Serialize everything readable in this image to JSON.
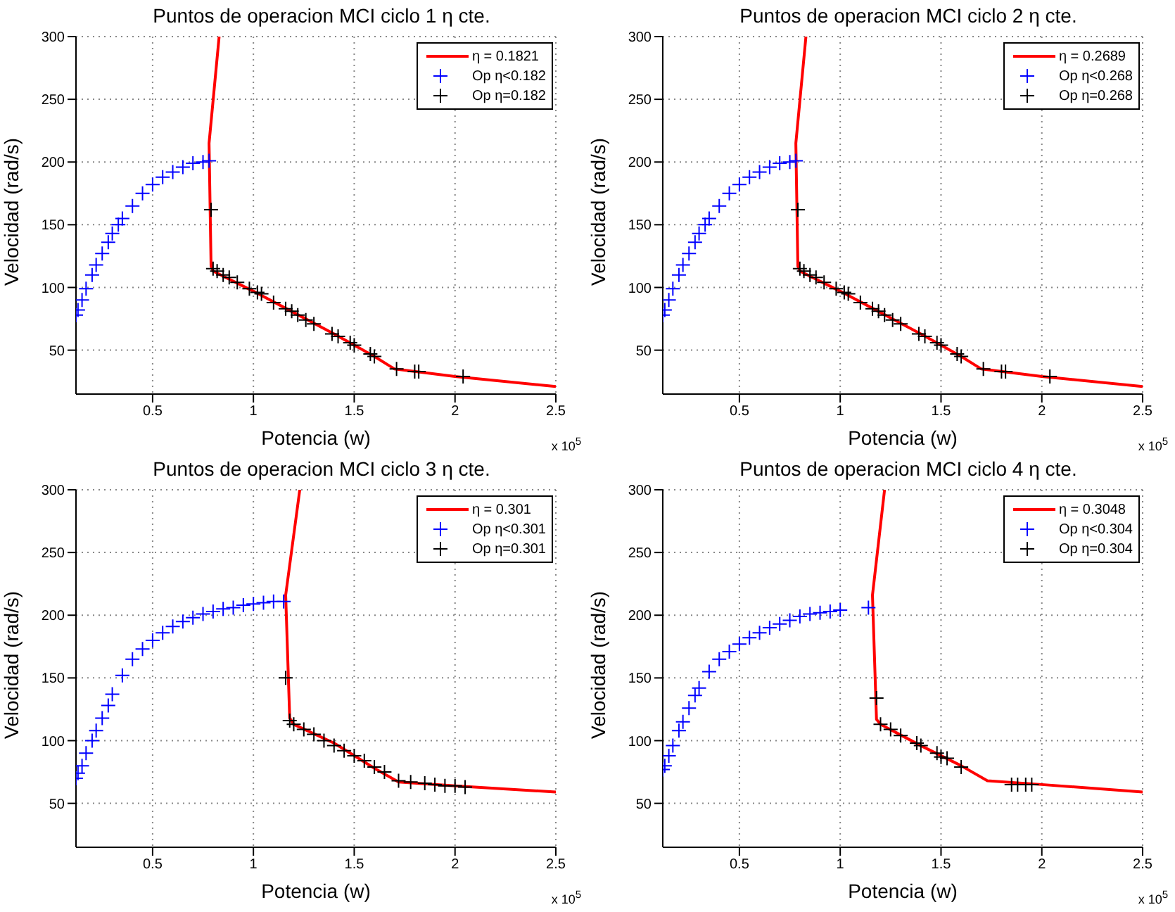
{
  "chart_data": [
    {
      "type": "scatter",
      "title": "Puntos de operacion MCI ciclo 1 η cte.",
      "xlabel": "Potencia (w)",
      "ylabel": "Velocidad (rad/s)",
      "annotations": [
        "x 10$^{5}$"
      ],
      "xlim": [
        0.12,
        2.5
      ],
      "ylim": [
        15,
        300
      ],
      "xticks": [
        0.5,
        1,
        1.5,
        2,
        2.5
      ],
      "yticks": [
        50,
        100,
        150,
        200,
        250,
        300
      ],
      "grid": true,
      "legend": "top right",
      "series": [
        {
          "name": "η = 0.1821",
          "type": "line",
          "color": "#ff0000",
          "marker": "none",
          "x": [
            0.83,
            0.78,
            0.79,
            0.8,
            1.0,
            1.2,
            1.4,
            1.6,
            1.7,
            2.0,
            2.5
          ],
          "values": [
            300,
            215,
            117,
            113,
            97,
            80,
            63,
            45,
            35,
            29,
            21
          ]
        },
        {
          "name": "Op η<0.182",
          "type": "scatter",
          "color": "#0000ff",
          "marker": "cross",
          "x": [
            0.12,
            0.13,
            0.15,
            0.17,
            0.2,
            0.22,
            0.25,
            0.28,
            0.3,
            0.33,
            0.35,
            0.4,
            0.45,
            0.5,
            0.55,
            0.6,
            0.65,
            0.7,
            0.75,
            0.78
          ],
          "values": [
            78,
            82,
            90,
            99,
            110,
            118,
            127,
            136,
            143,
            150,
            155,
            165,
            175,
            182,
            188,
            192,
            196,
            199,
            200,
            201
          ]
        },
        {
          "name": "Op η=0.182",
          "type": "scatter",
          "color": "#000000",
          "marker": "cross",
          "x": [
            0.79,
            0.8,
            0.82,
            0.85,
            0.88,
            0.92,
            0.98,
            1.02,
            1.04,
            1.1,
            1.16,
            1.19,
            1.22,
            1.26,
            1.3,
            1.39,
            1.42,
            1.48,
            1.5,
            1.58,
            1.6,
            1.71,
            1.8,
            1.82,
            2.04
          ],
          "values": [
            162,
            115,
            113,
            110,
            108,
            104,
            99,
            96,
            95,
            88,
            83,
            81,
            78,
            74,
            71,
            63,
            61,
            56,
            54,
            47,
            45,
            35,
            33,
            33,
            29
          ]
        }
      ]
    },
    {
      "type": "scatter",
      "title": "Puntos de operacion MCI ciclo 2 η cte.",
      "xlabel": "Potencia (w)",
      "ylabel": "Velocidad (rad/s)",
      "annotations": [
        "x 10$^{5}$"
      ],
      "xlim": [
        0.12,
        2.5
      ],
      "ylim": [
        15,
        300
      ],
      "xticks": [
        0.5,
        1,
        1.5,
        2,
        2.5
      ],
      "yticks": [
        50,
        100,
        150,
        200,
        250,
        300
      ],
      "grid": true,
      "legend": "top right",
      "series": [
        {
          "name": "η = 0.2689",
          "type": "line",
          "color": "#ff0000",
          "marker": "none",
          "x": [
            0.83,
            0.78,
            0.79,
            0.8,
            1.0,
            1.2,
            1.4,
            1.6,
            1.7,
            2.0,
            2.5
          ],
          "values": [
            300,
            215,
            117,
            113,
            97,
            80,
            63,
            45,
            35,
            29,
            21
          ]
        },
        {
          "name": "Op η<0.268",
          "type": "scatter",
          "color": "#0000ff",
          "marker": "cross",
          "x": [
            0.12,
            0.13,
            0.15,
            0.17,
            0.2,
            0.22,
            0.25,
            0.28,
            0.3,
            0.33,
            0.35,
            0.4,
            0.45,
            0.5,
            0.55,
            0.6,
            0.65,
            0.7,
            0.75,
            0.78
          ],
          "values": [
            78,
            82,
            90,
            99,
            110,
            118,
            127,
            136,
            143,
            150,
            155,
            165,
            175,
            182,
            188,
            192,
            196,
            199,
            200,
            201
          ]
        },
        {
          "name": "Op η=0.268",
          "type": "scatter",
          "color": "#000000",
          "marker": "cross",
          "x": [
            0.79,
            0.8,
            0.82,
            0.85,
            0.88,
            0.92,
            0.98,
            1.02,
            1.04,
            1.1,
            1.16,
            1.19,
            1.22,
            1.26,
            1.3,
            1.39,
            1.42,
            1.48,
            1.5,
            1.58,
            1.6,
            1.71,
            1.8,
            1.82,
            2.04
          ],
          "values": [
            162,
            115,
            113,
            110,
            108,
            104,
            99,
            96,
            95,
            88,
            83,
            81,
            78,
            74,
            71,
            63,
            61,
            56,
            54,
            47,
            45,
            35,
            33,
            33,
            29
          ]
        }
      ]
    },
    {
      "type": "scatter",
      "title": "Puntos de operacion MCI ciclo 3 η cte.",
      "xlabel": "Potencia (w)",
      "ylabel": "Velocidad (rad/s)",
      "annotations": [
        "x 10$^{5}$"
      ],
      "xlim": [
        0.12,
        2.5
      ],
      "ylim": [
        15,
        300
      ],
      "xticks": [
        0.5,
        1,
        1.5,
        2,
        2.5
      ],
      "yticks": [
        50,
        100,
        150,
        200,
        250,
        300
      ],
      "grid": true,
      "legend": "top right",
      "series": [
        {
          "name": "η = 0.301",
          "type": "line",
          "color": "#ff0000",
          "marker": "none",
          "x": [
            1.23,
            1.16,
            1.18,
            1.2,
            1.4,
            1.6,
            1.72,
            2.0,
            2.5
          ],
          "values": [
            300,
            216,
            118,
            113,
            98,
            78,
            67,
            64,
            59
          ]
        },
        {
          "name": "Op η<0.301",
          "type": "scatter",
          "color": "#0000ff",
          "marker": "cross",
          "x": [
            0.12,
            0.13,
            0.15,
            0.17,
            0.2,
            0.22,
            0.25,
            0.28,
            0.3,
            0.35,
            0.4,
            0.45,
            0.5,
            0.55,
            0.6,
            0.65,
            0.7,
            0.75,
            0.8,
            0.85,
            0.9,
            0.95,
            1.0,
            1.05,
            1.1,
            1.15
          ],
          "values": [
            70,
            74,
            80,
            90,
            100,
            108,
            118,
            128,
            137,
            152,
            165,
            173,
            180,
            186,
            191,
            195,
            198,
            201,
            203,
            205,
            206,
            208,
            209,
            210,
            211,
            211
          ]
        },
        {
          "name": "Op η=0.301",
          "type": "scatter",
          "color": "#000000",
          "marker": "cross",
          "x": [
            1.16,
            1.18,
            1.2,
            1.25,
            1.3,
            1.35,
            1.4,
            1.45,
            1.5,
            1.55,
            1.6,
            1.65,
            1.72,
            1.78,
            1.85,
            1.9,
            1.95,
            2.0,
            2.05
          ],
          "values": [
            150,
            116,
            113,
            109,
            105,
            100,
            96,
            92,
            88,
            84,
            79,
            75,
            68,
            67,
            66,
            65,
            64,
            64,
            63
          ]
        }
      ]
    },
    {
      "type": "scatter",
      "title": "Puntos de operacion MCI ciclo 4 η cte.",
      "xlabel": "Potencia (w)",
      "ylabel": "Velocidad (rad/s)",
      "annotations": [
        "x 10$^{5}$"
      ],
      "xlim": [
        0.12,
        2.5
      ],
      "ylim": [
        15,
        300
      ],
      "xticks": [
        0.5,
        1,
        1.5,
        2,
        2.5
      ],
      "yticks": [
        50,
        100,
        150,
        200,
        250,
        300
      ],
      "grid": true,
      "legend": "top right",
      "series": [
        {
          "name": "η = 0.3048",
          "type": "line",
          "color": "#ff0000",
          "marker": "none",
          "x": [
            1.22,
            1.16,
            1.18,
            1.2,
            1.4,
            1.6,
            1.73,
            2.0,
            2.5
          ],
          "values": [
            300,
            216,
            117,
            113,
            96,
            80,
            68,
            65,
            59
          ]
        },
        {
          "name": "Op η<0.304",
          "type": "scatter",
          "color": "#0000ff",
          "marker": "cross",
          "x": [
            0.12,
            0.13,
            0.15,
            0.17,
            0.2,
            0.22,
            0.25,
            0.28,
            0.3,
            0.35,
            0.4,
            0.45,
            0.5,
            0.55,
            0.6,
            0.65,
            0.7,
            0.75,
            0.8,
            0.85,
            0.9,
            0.95,
            1.0,
            1.14
          ],
          "values": [
            77,
            80,
            88,
            96,
            108,
            115,
            126,
            136,
            142,
            155,
            165,
            171,
            177,
            182,
            186,
            190,
            193,
            196,
            199,
            201,
            202,
            203,
            204,
            206
          ]
        },
        {
          "name": "Op η=0.304",
          "type": "scatter",
          "color": "#000000",
          "marker": "cross",
          "x": [
            1.18,
            1.2,
            1.25,
            1.3,
            1.38,
            1.4,
            1.48,
            1.5,
            1.53,
            1.6,
            1.85,
            1.88,
            1.92,
            1.95
          ],
          "values": [
            134,
            113,
            109,
            104,
            98,
            96,
            90,
            87,
            86,
            79,
            65,
            65,
            65,
            65
          ]
        }
      ]
    }
  ]
}
